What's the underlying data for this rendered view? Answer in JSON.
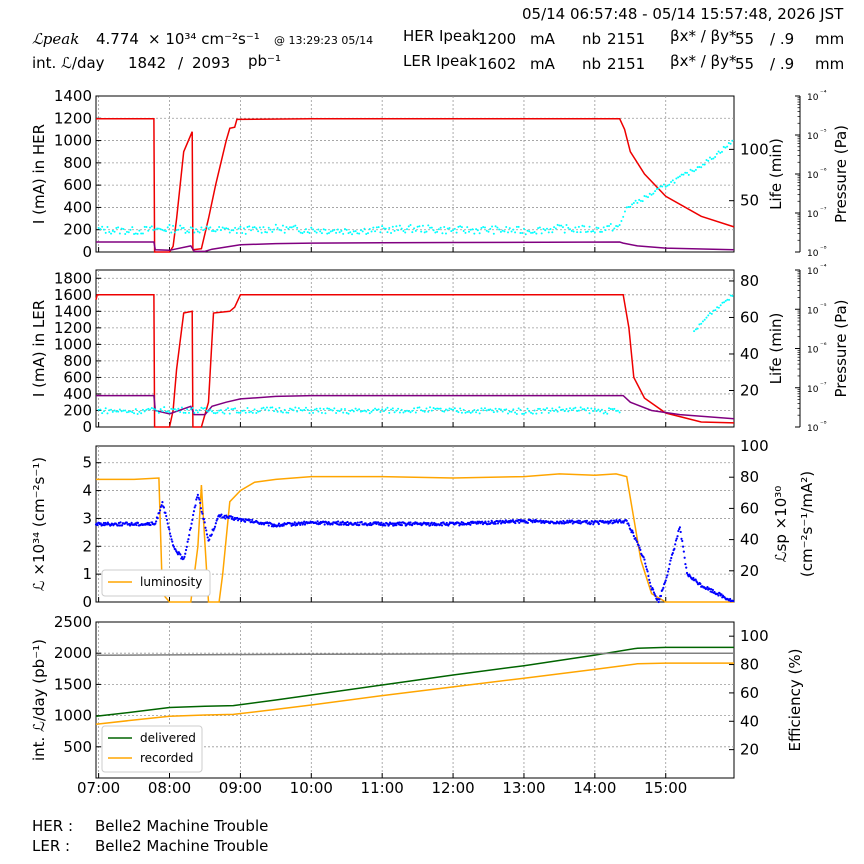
{
  "header": {
    "time_range": "05/14 06:57:48 - 05/14 15:57:48, 2026 JST",
    "lpeak_label": "ℒpeak",
    "lpeak_value": "4.774",
    "lpeak_unit": "× 10³⁴ cm⁻²s⁻¹",
    "lpeak_time": "@ 13:29:23 05/14",
    "intl_label": "int. ℒ/day",
    "intl_value": "1842",
    "intl_sep": "/",
    "intl_total": "2093",
    "intl_unit": "pb⁻¹",
    "her_label": "HER Ipeak",
    "her_current": "1200",
    "ler_label": "LER Ipeak",
    "ler_current": "1602",
    "current_unit": "mA",
    "nb_label": "nb",
    "her_nb": "2151",
    "ler_nb": "2151",
    "beta_label": "βx* / βy*",
    "her_beta_x": "55",
    "her_beta_y": "/ .9",
    "ler_beta_x": "55",
    "ler_beta_y": "/ .9",
    "beta_unit": "mm"
  },
  "footer": {
    "her_label": "HER :",
    "her_status": "Belle2 Machine Trouble",
    "ler_label": "LER :",
    "ler_status": "Belle2 Machine Trouble"
  },
  "colors": {
    "current": "#ee0000",
    "life": "#800080",
    "pressure": "#00ffff",
    "luminosity": "#ffa500",
    "specific": "#0000ff",
    "delivered": "#006400",
    "recorded": "#ffa500",
    "efficiency": "#808080"
  },
  "chart_data": [
    {
      "type": "line",
      "id": "her",
      "x_unit": "hour",
      "xlim": [
        6.963,
        15.963
      ],
      "ylabel": "I (mA) in HER",
      "ylim": [
        0,
        1400
      ],
      "yticks": [
        0,
        200,
        400,
        600,
        800,
        1000,
        1200,
        1400
      ],
      "y2label": "Life (min)",
      "y2ticks": [
        50,
        100
      ],
      "y3label": "Pressure (Pa)",
      "y3ticks": [
        "10⁻⁸",
        "10⁻⁷",
        "10⁻⁶",
        "10⁻⁵",
        "10⁻⁴"
      ],
      "grid": true,
      "series": [
        {
          "role": "current",
          "points": [
            [
              6.963,
              1195
            ],
            [
              7.78,
              1195
            ],
            [
              7.79,
              0
            ],
            [
              8.0,
              0
            ],
            [
              8.05,
              50
            ],
            [
              8.1,
              300
            ],
            [
              8.2,
              900
            ],
            [
              8.32,
              1080
            ],
            [
              8.33,
              20
            ],
            [
              8.45,
              30
            ],
            [
              8.55,
              300
            ],
            [
              8.65,
              600
            ],
            [
              8.8,
              1000
            ],
            [
              8.85,
              1110
            ],
            [
              8.92,
              1120
            ],
            [
              8.95,
              1190
            ],
            [
              10,
              1195
            ],
            [
              12,
              1195
            ],
            [
              14.35,
              1195
            ],
            [
              14.42,
              1100
            ],
            [
              14.5,
              900
            ],
            [
              14.7,
              700
            ],
            [
              15.0,
              500
            ],
            [
              15.5,
              320
            ],
            [
              15.963,
              225
            ]
          ]
        },
        {
          "role": "life",
          "points": [
            [
              6.963,
              90
            ],
            [
              7.78,
              90
            ],
            [
              7.8,
              20
            ],
            [
              8.0,
              15
            ],
            [
              8.3,
              55
            ],
            [
              8.35,
              5
            ],
            [
              8.5,
              5
            ],
            [
              8.6,
              25
            ],
            [
              8.8,
              45
            ],
            [
              9.0,
              65
            ],
            [
              9.5,
              75
            ],
            [
              10,
              80
            ],
            [
              12,
              85
            ],
            [
              14.35,
              90
            ],
            [
              14.4,
              80
            ],
            [
              14.6,
              55
            ],
            [
              15,
              35
            ],
            [
              15.963,
              20
            ]
          ]
        },
        {
          "role": "pressure",
          "points": [
            [
              7.0,
              200
            ],
            [
              7.5,
              190
            ],
            [
              8.0,
              210
            ],
            [
              8.5,
              200
            ],
            [
              9.0,
              195
            ],
            [
              9.5,
              210
            ],
            [
              10.0,
              200
            ],
            [
              10.5,
              190
            ],
            [
              11.0,
              200
            ],
            [
              11.5,
              210
            ],
            [
              12.0,
              195
            ],
            [
              12.5,
              200
            ],
            [
              13.0,
              190
            ],
            [
              13.5,
              210
            ],
            [
              14.0,
              200
            ],
            [
              14.35,
              230
            ],
            [
              14.45,
              400
            ],
            [
              14.6,
              450
            ],
            [
              14.8,
              520
            ],
            [
              15.0,
              600
            ],
            [
              15.3,
              700
            ],
            [
              15.6,
              820
            ],
            [
              15.963,
              1000
            ]
          ]
        }
      ]
    },
    {
      "type": "line",
      "id": "ler",
      "x_unit": "hour",
      "xlim": [
        6.963,
        15.963
      ],
      "ylabel": "I (mA) in LER",
      "ylim": [
        0,
        1900
      ],
      "yticks": [
        0,
        200,
        400,
        600,
        800,
        1000,
        1200,
        1400,
        1600,
        1800
      ],
      "y2label": "Life (min)",
      "y2ticks": [
        20,
        40,
        60,
        80
      ],
      "y3label": "Pressure (Pa)",
      "y3ticks": [
        "10⁻⁸",
        "10⁻⁷",
        "10⁻⁶",
        "10⁻⁵",
        "10⁻⁴"
      ],
      "grid": true,
      "series": [
        {
          "role": "current",
          "points": [
            [
              6.963,
              1540
            ],
            [
              6.98,
              1600
            ],
            [
              7.78,
              1600
            ],
            [
              7.79,
              0
            ],
            [
              8.0,
              0
            ],
            [
              8.05,
              200
            ],
            [
              8.1,
              700
            ],
            [
              8.2,
              1380
            ],
            [
              8.32,
              1400
            ],
            [
              8.33,
              0
            ],
            [
              8.45,
              0
            ],
            [
              8.55,
              300
            ],
            [
              8.62,
              1380
            ],
            [
              8.85,
              1400
            ],
            [
              8.92,
              1450
            ],
            [
              9.0,
              1600
            ],
            [
              12,
              1600
            ],
            [
              14.4,
              1600
            ],
            [
              14.48,
              1200
            ],
            [
              14.55,
              600
            ],
            [
              14.7,
              350
            ],
            [
              15.0,
              170
            ],
            [
              15.5,
              60
            ],
            [
              15.963,
              50
            ]
          ]
        },
        {
          "role": "life",
          "points": [
            [
              6.963,
              380
            ],
            [
              7.78,
              380
            ],
            [
              7.8,
              200
            ],
            [
              8.0,
              160
            ],
            [
              8.3,
              250
            ],
            [
              8.35,
              150
            ],
            [
              8.5,
              150
            ],
            [
              8.6,
              250
            ],
            [
              8.8,
              300
            ],
            [
              9.0,
              340
            ],
            [
              9.5,
              370
            ],
            [
              10,
              380
            ],
            [
              12,
              380
            ],
            [
              14.4,
              380
            ],
            [
              14.5,
              300
            ],
            [
              14.8,
              200
            ],
            [
              15.2,
              150
            ],
            [
              15.963,
              100
            ]
          ]
        },
        {
          "role": "pressure",
          "points": [
            [
              7.0,
              200
            ],
            [
              7.5,
              190
            ],
            [
              8.0,
              210
            ],
            [
              8.5,
              200
            ],
            [
              9.0,
              195
            ],
            [
              9.5,
              210
            ],
            [
              10.0,
              200
            ],
            [
              10.5,
              190
            ],
            [
              11.0,
              200
            ],
            [
              11.5,
              210
            ],
            [
              12.0,
              195
            ],
            [
              12.5,
              200
            ],
            [
              13.0,
              190
            ],
            [
              13.5,
              210
            ],
            [
              14.0,
              200
            ],
            [
              14.35,
              190
            ],
            [
              15.4,
              1150
            ],
            [
              15.6,
              1350
            ],
            [
              15.8,
              1500
            ],
            [
              15.963,
              1600
            ]
          ]
        }
      ]
    },
    {
      "type": "line",
      "id": "lum",
      "x_unit": "hour",
      "xlim": [
        6.963,
        15.963
      ],
      "ylabel": "ℒ ×10³⁴ (cm⁻²s⁻¹)",
      "ylim": [
        0,
        5.6
      ],
      "yticks": [
        0,
        1,
        2,
        3,
        4,
        5
      ],
      "y2label": "ℒsp ×10³⁰ (cm⁻²s⁻¹/mA²)",
      "y2lim": [
        0,
        100
      ],
      "y2ticks": [
        20,
        40,
        60,
        80,
        100
      ],
      "legend": {
        "position": "lower-left",
        "entries": [
          "luminosity"
        ]
      },
      "grid": true,
      "series": [
        {
          "name": "luminosity",
          "role": "luminosity",
          "points": [
            [
              6.963,
              4.4
            ],
            [
              7.5,
              4.4
            ],
            [
              7.85,
              4.45
            ],
            [
              7.9,
              0.3
            ],
            [
              8.0,
              0
            ],
            [
              8.3,
              0
            ],
            [
              8.4,
              2.0
            ],
            [
              8.45,
              4.2
            ],
            [
              8.55,
              0
            ],
            [
              8.7,
              0
            ],
            [
              8.75,
              1.0
            ],
            [
              8.85,
              3.6
            ],
            [
              9.0,
              4.0
            ],
            [
              9.2,
              4.3
            ],
            [
              9.5,
              4.4
            ],
            [
              10,
              4.5
            ],
            [
              11,
              4.5
            ],
            [
              12,
              4.45
            ],
            [
              13,
              4.5
            ],
            [
              13.5,
              4.6
            ],
            [
              14,
              4.55
            ],
            [
              14.3,
              4.6
            ],
            [
              14.45,
              4.5
            ],
            [
              14.55,
              3.0
            ],
            [
              14.65,
              1.5
            ],
            [
              14.8,
              0.3
            ],
            [
              15.0,
              0
            ],
            [
              15.963,
              0
            ]
          ]
        },
        {
          "role": "specific",
          "points": [
            [
              6.963,
              2.8
            ],
            [
              7.8,
              2.8
            ],
            [
              7.9,
              3.6
            ],
            [
              8.05,
              2.0
            ],
            [
              8.2,
              1.5
            ],
            [
              8.4,
              3.9
            ],
            [
              8.55,
              2.2
            ],
            [
              8.7,
              3.1
            ],
            [
              8.9,
              3.0
            ],
            [
              9.5,
              2.75
            ],
            [
              10,
              2.85
            ],
            [
              11,
              2.8
            ],
            [
              12,
              2.8
            ],
            [
              13,
              2.9
            ],
            [
              14,
              2.85
            ],
            [
              14.45,
              2.9
            ],
            [
              14.55,
              2.4
            ],
            [
              14.7,
              1.5
            ],
            [
              14.8,
              0.5
            ],
            [
              14.9,
              0
            ],
            [
              15.0,
              0.8
            ],
            [
              15.2,
              2.7
            ],
            [
              15.3,
              1.0
            ],
            [
              15.5,
              0.6
            ],
            [
              15.963,
              0
            ]
          ]
        }
      ]
    },
    {
      "type": "line",
      "id": "intlum",
      "x_unit": "hour",
      "xlim": [
        6.963,
        15.963
      ],
      "xticks": [
        "07:00",
        "08:00",
        "09:00",
        "10:00",
        "11:00",
        "12:00",
        "13:00",
        "14:00",
        "15:00"
      ],
      "ylabel": "int. ℒ/day (pb⁻¹)",
      "ylim": [
        0,
        2500
      ],
      "yticks": [
        500,
        1000,
        1500,
        2000,
        2500
      ],
      "y2label": "Efficiency (%)",
      "y2lim": [
        0,
        110
      ],
      "y2ticks": [
        20,
        40,
        60,
        80,
        100
      ],
      "legend": {
        "position": "lower-left",
        "entries": [
          "delivered",
          "recorded"
        ]
      },
      "grid": true,
      "series": [
        {
          "name": "delivered",
          "role": "delivered",
          "points": [
            [
              6.963,
              990
            ],
            [
              7.5,
              1060
            ],
            [
              8.0,
              1130
            ],
            [
              8.5,
              1150
            ],
            [
              8.9,
              1160
            ],
            [
              9.5,
              1250
            ],
            [
              10,
              1330
            ],
            [
              11,
              1490
            ],
            [
              12,
              1650
            ],
            [
              13,
              1800
            ],
            [
              14,
              1970
            ],
            [
              14.6,
              2080
            ],
            [
              15.0,
              2093
            ],
            [
              15.963,
              2093
            ]
          ]
        },
        {
          "name": "recorded",
          "role": "recorded",
          "points": [
            [
              6.963,
              860
            ],
            [
              7.5,
              930
            ],
            [
              8.0,
              990
            ],
            [
              8.5,
              1010
            ],
            [
              8.9,
              1020
            ],
            [
              9.5,
              1100
            ],
            [
              10,
              1170
            ],
            [
              11,
              1320
            ],
            [
              12,
              1460
            ],
            [
              13,
              1600
            ],
            [
              14,
              1740
            ],
            [
              14.6,
              1830
            ],
            [
              15.0,
              1842
            ],
            [
              15.963,
              1842
            ]
          ]
        },
        {
          "role": "efficiency",
          "points": [
            [
              6.963,
              86.5
            ],
            [
              8.0,
              86.8
            ],
            [
              10,
              87.2
            ],
            [
              12,
              87.5
            ],
            [
              14,
              87.8
            ],
            [
              14.6,
              88
            ],
            [
              15.963,
              88
            ]
          ]
        }
      ]
    }
  ]
}
